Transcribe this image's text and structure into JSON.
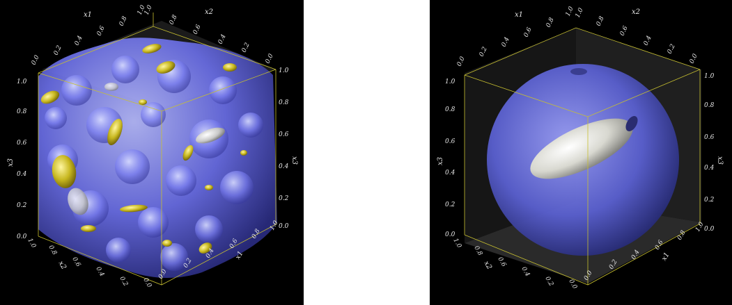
{
  "panels": [
    {
      "axes": {
        "x1_label": "x1",
        "x2_label": "x2",
        "x3_label": "x3",
        "top_x1_ticks": [
          "0.0",
          "0.2",
          "0.4",
          "0.6",
          "0.8",
          "1.0"
        ],
        "top_x2_ticks": [
          "1.0",
          "0.8",
          "0.6",
          "0.4",
          "0.2",
          "0.0"
        ],
        "left_x3_ticks": [
          "1.0",
          "0.8",
          "0.6",
          "0.4",
          "0.2",
          "0.0"
        ],
        "right_x3_ticks": [
          "1.0",
          "0.8",
          "0.6",
          "0.4",
          "0.2",
          "0.0"
        ],
        "bottom_x2_ticks": [
          "1.0",
          "0.8",
          "0.6",
          "0.4",
          "0.2",
          "0.0"
        ],
        "bottom_x1_ticks": [
          "0.0",
          "0.2",
          "0.4",
          "0.6",
          "0.8",
          "1.0"
        ]
      },
      "colors": {
        "volume": "#6a6ee6",
        "particles": "#c8b820",
        "axes": "#c8c030"
      }
    },
    {
      "axes": {
        "x1_label": "x1",
        "x2_label": "x2",
        "x3_label": "x3",
        "top_x1_ticks": [
          "0.0",
          "0.2",
          "0.4",
          "0.6",
          "0.8",
          "1.0"
        ],
        "top_x2_ticks": [
          "1.0",
          "0.8",
          "0.6",
          "0.4",
          "0.2",
          "0.0"
        ],
        "left_x3_ticks": [
          "1.0",
          "0.8",
          "0.6",
          "0.4",
          "0.2",
          "0.0"
        ],
        "right_x3_ticks": [
          "1.0",
          "0.8",
          "0.6",
          "0.4",
          "0.2",
          "0.0"
        ],
        "bottom_x2_ticks": [
          "1.0",
          "0.8",
          "0.6",
          "0.4",
          "0.2",
          "0.0"
        ],
        "bottom_x1_ticks": [
          "0.0",
          "0.2",
          "0.4",
          "0.6",
          "0.8",
          "1.0"
        ]
      },
      "colors": {
        "sphere": "#5a60d0",
        "ellipsoid": "#d8d8d0",
        "axes": "#c8c030"
      }
    }
  ]
}
